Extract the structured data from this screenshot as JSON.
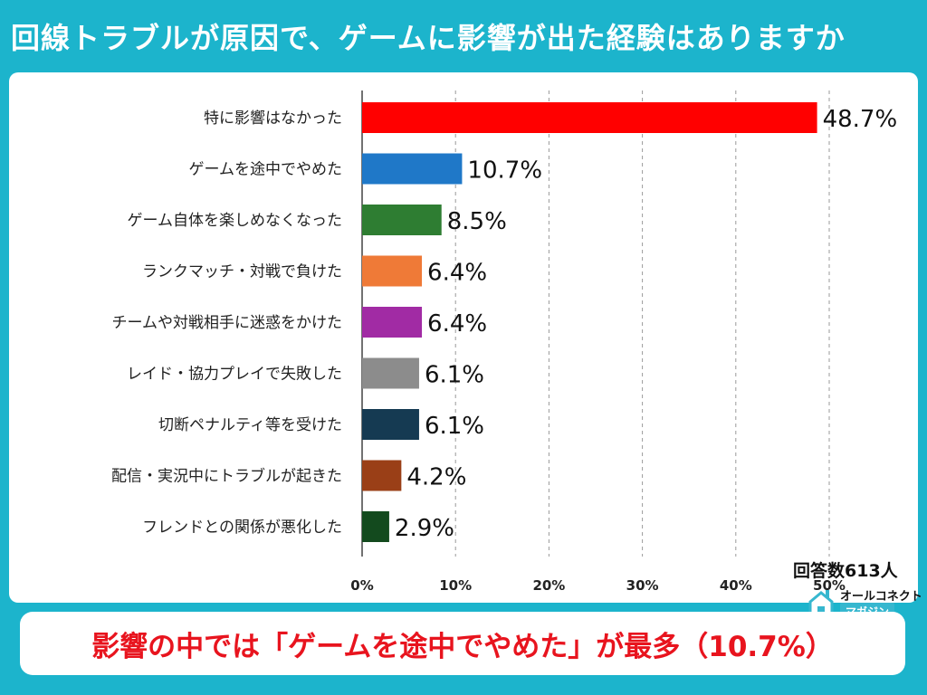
{
  "header": {
    "title": "回線トラブルが原因で、ゲームに影響が出た経験はありますか"
  },
  "respondents": "回答数613人",
  "brand": {
    "top": "オールコネクト",
    "box": "マガジン"
  },
  "footer": {
    "text": "影響の中では「ゲームを途中でやめた」が最多（10.7%）"
  },
  "chart_data": {
    "type": "bar",
    "orientation": "horizontal",
    "categories": [
      "特に影響はなかった",
      "ゲームを途中でやめた",
      "ゲーム自体を楽しめなくなった",
      "ランクマッチ・対戦で負けた",
      "チームや対戦相手に迷惑をかけた",
      "レイド・協力プレイで失敗した",
      "切断ペナルティ等を受けた",
      "配信・実況中にトラブルが起きた",
      "フレンドとの関係が悪化した"
    ],
    "values": [
      48.7,
      10.7,
      8.5,
      6.4,
      6.4,
      6.1,
      6.1,
      4.2,
      2.9
    ],
    "labels": [
      "48.7%",
      "10.7%",
      "8.5%",
      "6.4%",
      "6.4%",
      "6.1%",
      "6.1%",
      "4.2%",
      "2.9%"
    ],
    "colors": [
      "#ff0000",
      "#1f78c8",
      "#2e7d32",
      "#ef7a37",
      "#a12ba4",
      "#8c8c8c",
      "#153a52",
      "#9a3f17",
      "#134a1e"
    ],
    "xticks": [
      "0%",
      "10%",
      "20%",
      "30%",
      "40%",
      "50%"
    ],
    "xlim": [
      0,
      50
    ],
    "grid": "vertical-dashed"
  }
}
